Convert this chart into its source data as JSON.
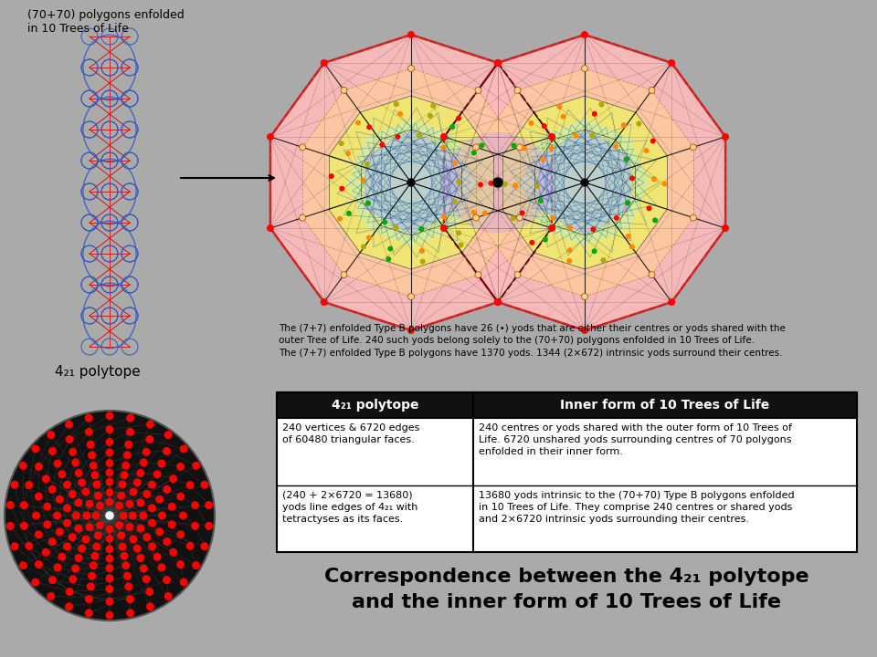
{
  "bg_color": "#aaaaaa",
  "title_top_left": "(70+70) polygons enfolded\nin 10 Trees of Life",
  "label_421": "4₂₁ polytope",
  "text_para1": "The (7+7) enfolded Type B polygons have 26 (•) yods that are either their centres or yods shared with the\nouter Tree of Life. 240 such yods belong solely to the (70+70) polygons enfolded in 10 Trees of Life.",
  "text_para2": "The (7+7) enfolded Type B polygons have 1370 yods. 1344 (2×672) intrinsic yods surround their centres.",
  "table_header_left": "4₂₁ polytope",
  "table_header_right": "Inner form of 10 Trees of Life",
  "table_row1_left": "240 vertices & 6720 edges\nof 60480 triangular faces.",
  "table_row1_right": "240 centres or yods shared with the outer form of 10 Trees of\nLife. 6720 unshared yods surrounding centres of 70 polygons\nenfolded in their inner form.",
  "table_row2_left": "(240 + 2×6720 = 13680)\nyods line edges of 4₂₁ with\ntetractyses as its faces.",
  "table_row2_right": "13680 yods intrinsic to the (70+70) Type B polygons enfolded\nin 10 Trees of Life. They comprise 240 centres or shared yods\nand 2×6720 intrinsic yods surrounding their centres.",
  "bottom_text_line1": "Correspondence between the 4₂₁ polytope",
  "bottom_text_line2": "and the inner form of 10 Trees of Life"
}
